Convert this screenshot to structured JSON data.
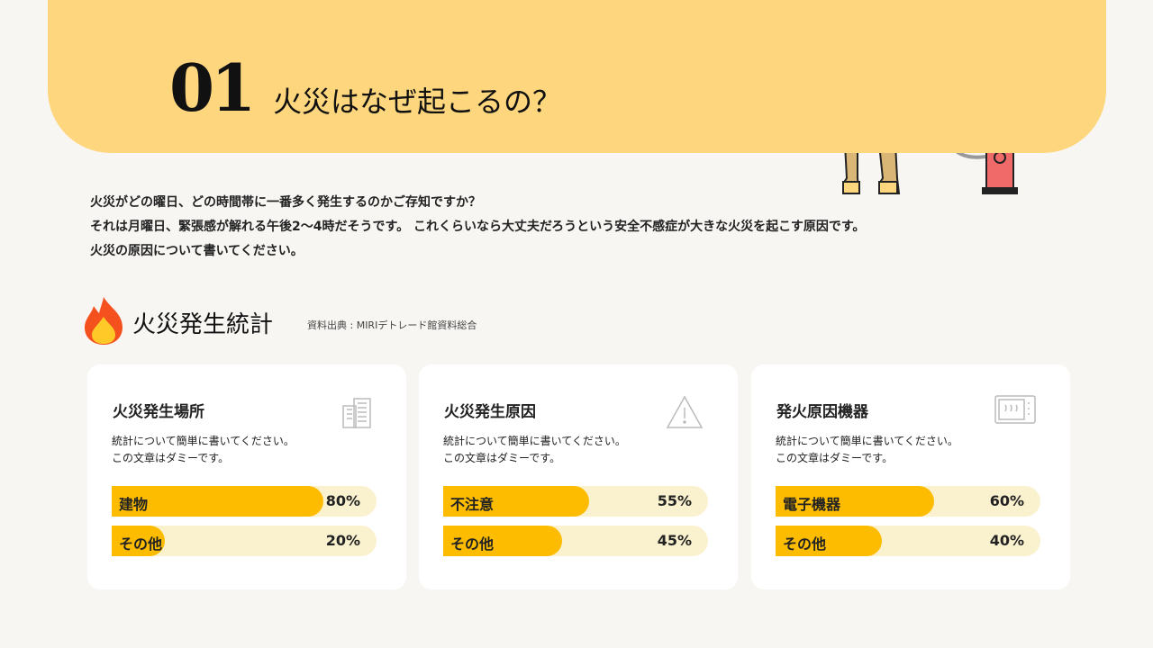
{
  "header": {
    "number": "01",
    "title": "火災はなぜ起こるの？"
  },
  "intro": [
    "火災がどの曜日、どの時間帯に一番多く発生するのかご存知ですか？",
    "それは月曜日、緊張感が解れる午後2〜4時だそうです。 これくらいなら大丈夫だろうという安全不感症が大きな火災を起こす原因です。",
    "火災の原因について書いてください。"
  ],
  "section": {
    "title": "火災発生統計",
    "source": "資料出典 : MIRIデトレード館資料総合",
    "icon": "fire-icon"
  },
  "colors": {
    "banner": "#fed67e",
    "bar_fill": "#fdbc00",
    "bar_track": "#faf1cf"
  },
  "cards": [
    {
      "title": "火災発生場所",
      "icon": "building-icon",
      "desc": [
        "統計について簡単に書いてください。",
        "この文章はダミーです。"
      ],
      "bars": [
        {
          "label": "建物",
          "value": 80,
          "text": "80%"
        },
        {
          "label": "その他",
          "value": 20,
          "text": "20%"
        }
      ]
    },
    {
      "title": "火災発生原因",
      "icon": "warning-icon",
      "desc": [
        "統計について簡単に書いてください。",
        "この文章はダミーです。"
      ],
      "bars": [
        {
          "label": "不注意",
          "value": 55,
          "text": "55%"
        },
        {
          "label": "その他",
          "value": 45,
          "text": "45%"
        }
      ]
    },
    {
      "title": "発火原因機器",
      "icon": "microwave-icon",
      "desc": [
        "統計について簡単に書いてください。",
        "この文章はダミーです。"
      ],
      "bars": [
        {
          "label": "電子機器",
          "value": 60,
          "text": "60%"
        },
        {
          "label": "その他",
          "value": 40,
          "text": "40%"
        }
      ]
    }
  ]
}
